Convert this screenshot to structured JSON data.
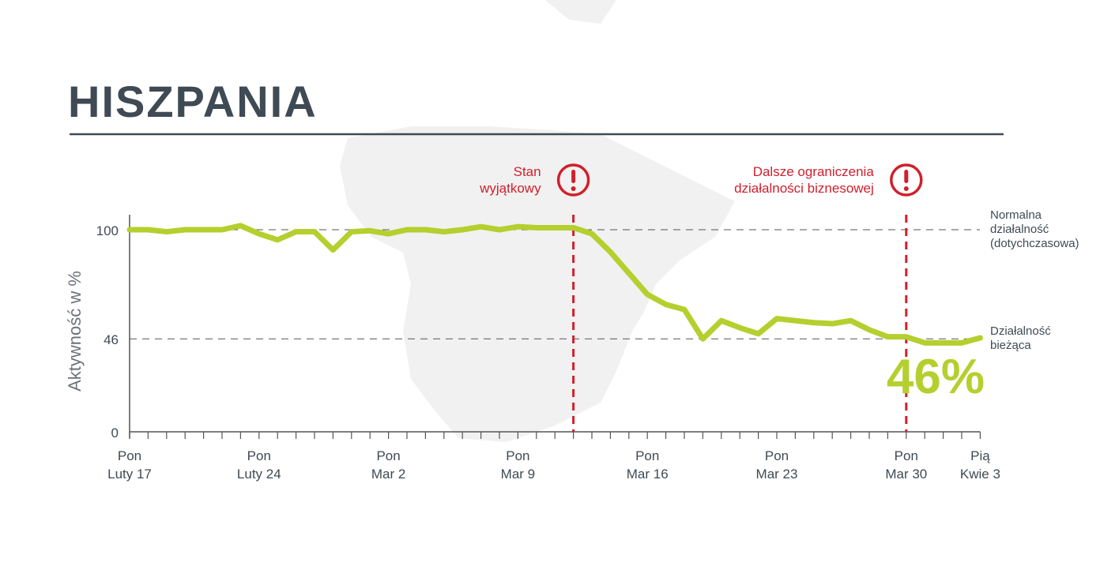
{
  "chart_data": {
    "type": "line",
    "title": "HISZPANIA",
    "ylabel": "Aktywność w %",
    "xlabel": "",
    "ylim": [
      0,
      100
    ],
    "yticks": [
      0,
      46,
      100
    ],
    "xlim": [
      "2020-02-17",
      "2020-04-03"
    ],
    "x_tick_labels": [
      {
        "date": "2020-02-17",
        "line1": "Pon",
        "line2": "Luty 17"
      },
      {
        "date": "2020-02-24",
        "line1": "Pon",
        "line2": "Luty 24"
      },
      {
        "date": "2020-03-02",
        "line1": "Pon",
        "line2": "Mar 2"
      },
      {
        "date": "2020-03-09",
        "line1": "Pon",
        "line2": "Mar 9"
      },
      {
        "date": "2020-03-16",
        "line1": "Pon",
        "line2": "Mar 16"
      },
      {
        "date": "2020-03-23",
        "line1": "Pon",
        "line2": "Mar 23"
      },
      {
        "date": "2020-03-30",
        "line1": "Pon",
        "line2": "Mar 30"
      },
      {
        "date": "2020-04-03",
        "line1": "Pią",
        "line2": "Kwie 3"
      }
    ],
    "series": [
      {
        "color": "#b5cf2e",
        "start_date": "2020-02-17",
        "interval": "daily",
        "values": [
          100,
          100,
          99,
          100,
          100,
          100,
          102,
          98,
          95,
          99,
          99,
          90,
          99,
          99.5,
          98,
          100,
          100,
          99,
          100,
          101.5,
          100,
          101.5,
          101,
          101,
          101,
          98,
          89,
          78.5,
          68,
          63,
          60.5,
          46,
          55,
          51.5,
          48.5,
          56,
          55,
          54,
          53.5,
          55,
          50.5,
          47,
          47,
          44,
          44,
          44,
          46.5
        ]
      }
    ],
    "reference_lines": [
      {
        "value": 100,
        "label_lines": [
          "Normalna",
          "działalność",
          "(dotychczasowa)"
        ]
      },
      {
        "value": 46,
        "label_lines": [
          "Działalność",
          "bieżąca"
        ]
      }
    ],
    "events": [
      {
        "date": "2020-03-12",
        "label_lines": [
          "Stan",
          "wyjątkowy"
        ],
        "icon": "exclamation-circle-icon"
      },
      {
        "date": "2020-03-30",
        "label_lines": [
          "Dalsze ograniczenia",
          "działalności biznesowej"
        ],
        "icon": "exclamation-circle-icon"
      }
    ],
    "big_label": "46%",
    "grid": false,
    "colors": {
      "line": "#b5cf2e",
      "event": "#d0202c",
      "text": "#3f4a54",
      "map": "#f0f0f0"
    }
  }
}
